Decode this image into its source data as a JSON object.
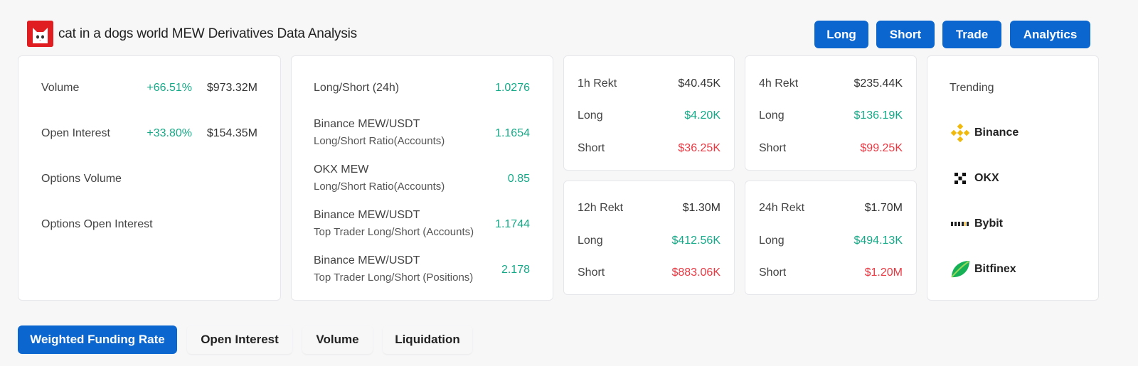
{
  "header": {
    "title": "cat in a dogs world MEW Derivatives Data Analysis",
    "logo_icon": "cat-face-logo",
    "buttons": [
      "Long",
      "Short",
      "Trade",
      "Analytics"
    ]
  },
  "overview": {
    "rows": [
      {
        "label": "Volume",
        "change": "+66.51%",
        "value": "$973.32M"
      },
      {
        "label": "Open Interest",
        "change": "+33.80%",
        "value": "$154.35M"
      },
      {
        "label": "Options Volume",
        "change": "",
        "value": ""
      },
      {
        "label": "Options Open Interest",
        "change": "",
        "value": ""
      }
    ]
  },
  "ratios": {
    "rows": [
      {
        "label": "Long/Short (24h)",
        "sublabel": "",
        "value": "1.0276"
      },
      {
        "label": "Binance MEW/USDT",
        "sublabel": "Long/Short Ratio(Accounts)",
        "value": "1.1654"
      },
      {
        "label": "OKX MEW",
        "sublabel": "Long/Short Ratio(Accounts)",
        "value": "0.85"
      },
      {
        "label": "Binance MEW/USDT",
        "sublabel": "Top Trader Long/Short (Accounts)",
        "value": "1.1744"
      },
      {
        "label": "Binance MEW/USDT",
        "sublabel": "Top Trader Long/Short (Positions)",
        "value": "2.178"
      }
    ]
  },
  "rekt": [
    {
      "title": "1h Rekt",
      "total": "$40.45K",
      "long_label": "Long",
      "long": "$4.20K",
      "short_label": "Short",
      "short": "$36.25K"
    },
    {
      "title": "4h Rekt",
      "total": "$235.44K",
      "long_label": "Long",
      "long": "$136.19K",
      "short_label": "Short",
      "short": "$99.25K"
    },
    {
      "title": "12h Rekt",
      "total": "$1.30M",
      "long_label": "Long",
      "long": "$412.56K",
      "short_label": "Short",
      "short": "$883.06K"
    },
    {
      "title": "24h Rekt",
      "total": "$1.70M",
      "long_label": "Long",
      "long": "$494.13K",
      "short_label": "Short",
      "short": "$1.20M"
    }
  ],
  "trending": {
    "title": "Trending",
    "exchanges": [
      {
        "name": "Binance",
        "icon": "binance-icon"
      },
      {
        "name": "OKX",
        "icon": "okx-icon"
      },
      {
        "name": "Bybit",
        "icon": "bybit-icon"
      },
      {
        "name": "Bitfinex",
        "icon": "bitfinex-icon"
      }
    ]
  },
  "tabs": [
    {
      "label": "Weighted Funding Rate",
      "active": true
    },
    {
      "label": "Open Interest",
      "active": false
    },
    {
      "label": "Volume",
      "active": false
    },
    {
      "label": "Liquidation",
      "active": false
    }
  ],
  "colors": {
    "accent": "#0b66d0",
    "positive": "#16a987",
    "negative": "#ea3943"
  }
}
